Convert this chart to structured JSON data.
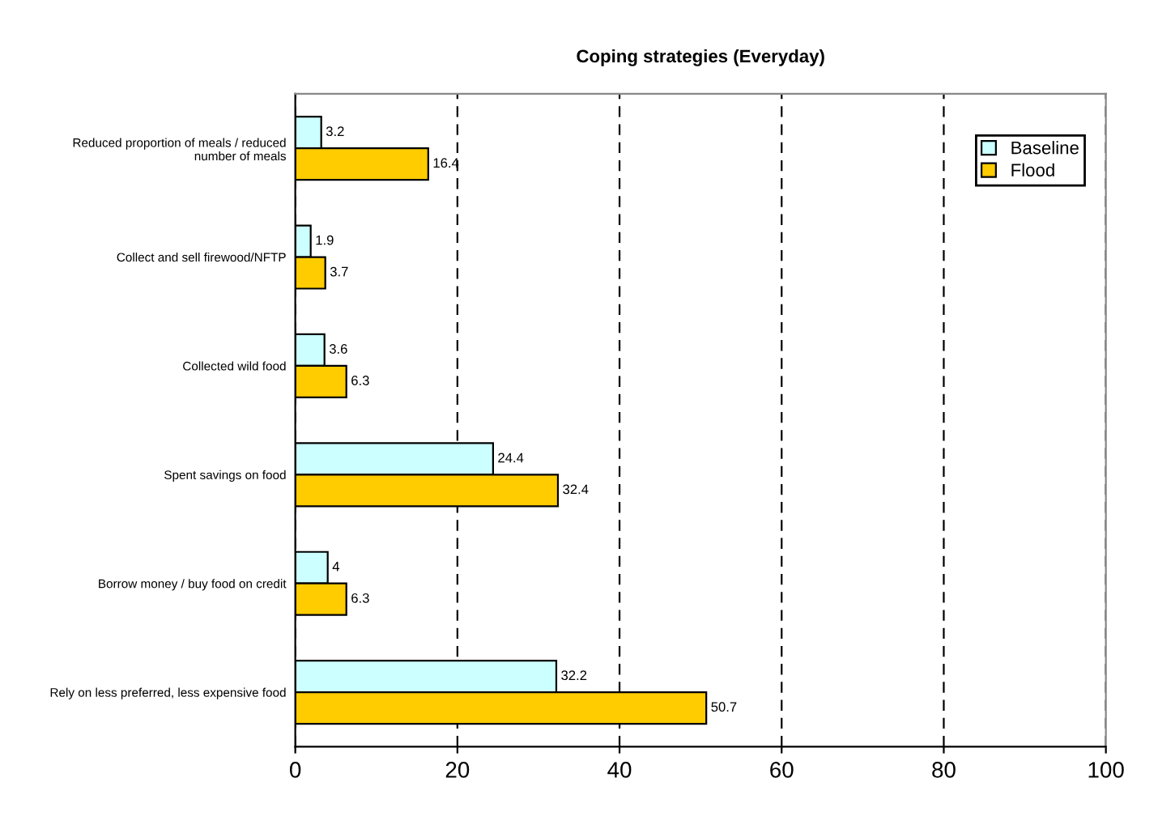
{
  "chart_data": {
    "type": "bar",
    "orientation": "horizontal",
    "title": "Coping strategies (Everyday)",
    "categories": [
      "Reduced proportion of meals / reduced\nnumber of meals",
      "Collect and sell firewood/NFTP",
      "Collected wild food",
      "Spent savings on food",
      "Borrow money / buy food on credit",
      "Rely on less preferred, less expensive food"
    ],
    "series": [
      {
        "name": "Baseline",
        "color": "#ccffff",
        "values": [
          3.2,
          1.9,
          3.6,
          24.4,
          4,
          32.2
        ]
      },
      {
        "name": "Flood",
        "color": "#ffcc00",
        "values": [
          16.4,
          3.7,
          6.3,
          32.4,
          6.3,
          50.7
        ]
      }
    ],
    "xlim": [
      0,
      100
    ],
    "xticks": [
      0,
      20,
      40,
      60,
      80,
      100
    ],
    "grid": "x",
    "line_style": "dashed",
    "legend": "top right",
    "data_labels": true
  }
}
